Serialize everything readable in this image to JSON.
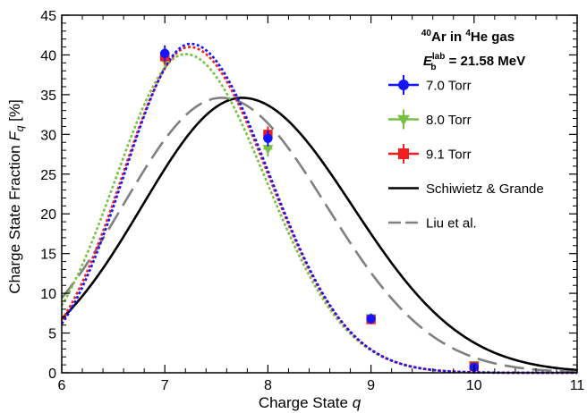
{
  "chart_data": {
    "type": "line",
    "title_line1": {
      "mass_sup": "40",
      "proj": "Ar in ",
      "gas_sup": "4",
      "gas": "He gas"
    },
    "title_line2": {
      "sym": "E",
      "sub": "b",
      "sup": "lab",
      "rest": " = 21.58 MeV"
    },
    "xlabel": {
      "text": "Charge State ",
      "var": "q"
    },
    "ylabel": {
      "text": "Charge State Fraction ",
      "var": "F",
      "sub": "q",
      "unit": " [%]"
    },
    "xlim": [
      6,
      11
    ],
    "ylim": [
      0,
      45
    ],
    "xticks": [
      "6",
      "7",
      "8",
      "9",
      "10",
      "11"
    ],
    "yticks": [
      "0",
      "5",
      "10",
      "15",
      "20",
      "25",
      "30",
      "35",
      "40",
      "45"
    ],
    "legend_position": "right",
    "series": [
      {
        "name": "7.0 Torr",
        "color": "#1414ff",
        "marker": "circle",
        "line": "dotted",
        "points": [
          {
            "x": 7,
            "y": 40.2,
            "err": 1.0
          },
          {
            "x": 8,
            "y": 29.5,
            "err": 1.0
          },
          {
            "x": 9,
            "y": 6.8,
            "err": 0.6
          },
          {
            "x": 10,
            "y": 0.7,
            "err": 0.3
          }
        ],
        "fit": {
          "amp": 41.4,
          "mean": 7.25,
          "sigma_left": 0.64,
          "sigma_right": 0.76
        }
      },
      {
        "name": "8.0 Torr",
        "color": "#77c043",
        "marker": "triangle-down",
        "line": "dotted",
        "points": [
          {
            "x": 7,
            "y": 39.3,
            "err": 1.0
          },
          {
            "x": 8,
            "y": 28.2,
            "err": 1.0
          },
          {
            "x": 9,
            "y": 6.9,
            "err": 0.6
          },
          {
            "x": 10,
            "y": 1.0,
            "err": 0.3
          }
        ],
        "fit": {
          "amp": 40.1,
          "mean": 7.2,
          "sigma_left": 0.68,
          "sigma_right": 0.78
        }
      },
      {
        "name": "9.1 Torr",
        "color": "#f01e1e",
        "marker": "square",
        "line": "dotted",
        "points": [
          {
            "x": 7,
            "y": 39.8,
            "err": 1.0
          },
          {
            "x": 8,
            "y": 30.0,
            "err": 1.0
          },
          {
            "x": 9,
            "y": 6.7,
            "err": 0.6
          },
          {
            "x": 10,
            "y": 0.8,
            "err": 0.3
          }
        ],
        "fit": {
          "amp": 41.0,
          "mean": 7.24,
          "sigma_left": 0.65,
          "sigma_right": 0.765
        }
      },
      {
        "name": "Schiwietz & Grande",
        "color": "#000000",
        "line": "solid",
        "fit": {
          "amp": 34.6,
          "mean": 7.75,
          "sigma_left": 0.97,
          "sigma_right": 1.07
        }
      },
      {
        "name": "Liu et al.",
        "color": "#808080",
        "line": "dashed",
        "fit": {
          "amp": 34.6,
          "mean": 7.55,
          "sigma_left": 0.96,
          "sigma_right": 1.02
        }
      }
    ]
  }
}
